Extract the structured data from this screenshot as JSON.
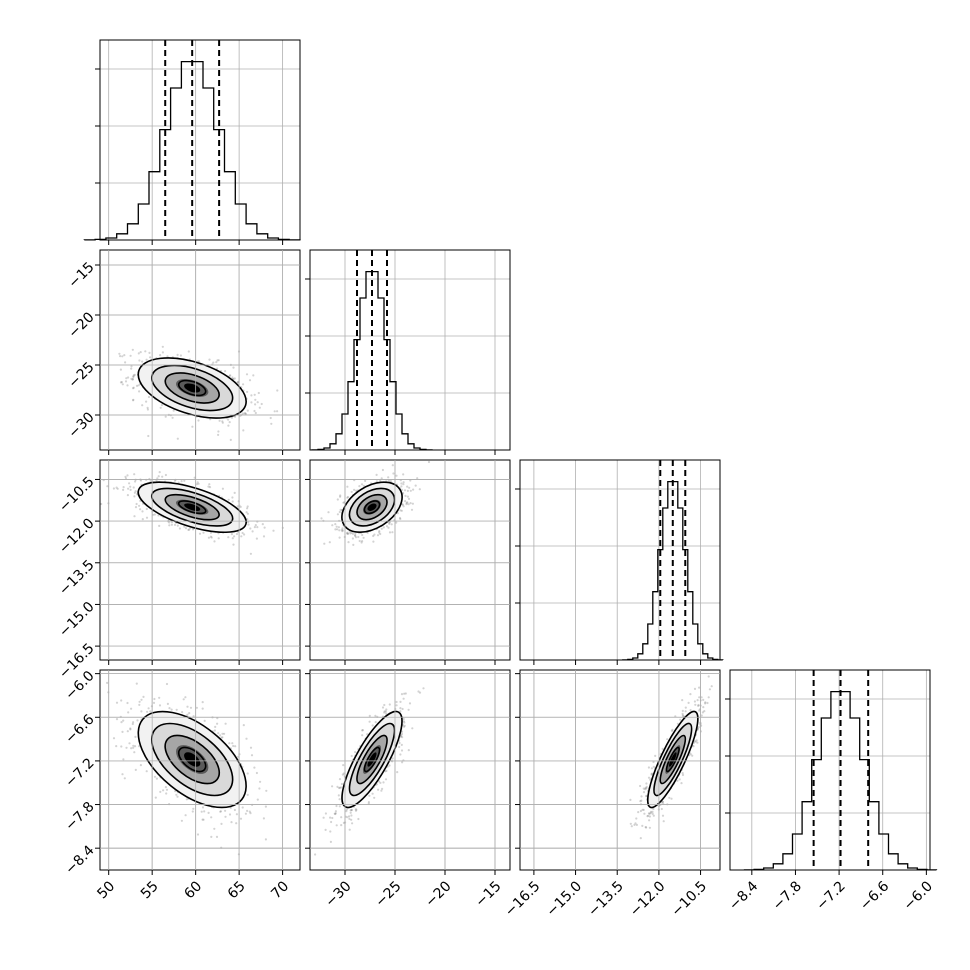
{
  "chart_data": {
    "type": "corner",
    "colors": {
      "line": "#000000",
      "grid": "#b0b0b0",
      "scatter": "#808080",
      "frame": "#000000"
    },
    "grid": true,
    "parameters": [
      {
        "mean": 59.6,
        "sd": 3.1,
        "quantiles": [
          56.5,
          59.6,
          62.7
        ],
        "range": [
          49,
          72
        ],
        "ticks": [
          50,
          55,
          60,
          65,
          70
        ],
        "tick_labels": [
          "50",
          "55",
          "60",
          "65",
          "70"
        ]
      },
      {
        "mean": -27.3,
        "sd": 1.5,
        "quantiles": [
          -28.8,
          -27.3,
          -25.8
        ],
        "range": [
          -33.5,
          -13.5
        ],
        "ticks": [
          -30,
          -25,
          -20,
          -15
        ],
        "tick_labels": [
          "−30",
          "−25",
          "−20",
          "−15"
        ]
      },
      {
        "mean": -11.5,
        "sd": 0.45,
        "quantiles": [
          -11.95,
          -11.5,
          -11.05
        ],
        "range": [
          -17.0,
          -9.8
        ],
        "ticks": [
          -16.5,
          -15.0,
          -13.5,
          -12.0,
          -10.5
        ],
        "tick_labels": [
          "−16.5",
          "−15.0",
          "−13.5",
          "−12.0",
          "−10.5"
        ]
      },
      {
        "mean": -7.18,
        "sd": 0.33,
        "quantiles": [
          -7.55,
          -7.18,
          -6.8
        ],
        "range": [
          -8.7,
          -5.95
        ],
        "ticks": [
          -8.4,
          -7.8,
          -7.2,
          -6.6,
          -6.0
        ],
        "tick_labels": [
          "−8.4",
          "−7.8",
          "−7.2",
          "−6.6",
          "−6.0"
        ]
      }
    ],
    "correlations": [
      {
        "pair": [
          0,
          1
        ],
        "rho": -0.45
      },
      {
        "pair": [
          0,
          2
        ],
        "rho": -0.6
      },
      {
        "pair": [
          1,
          2
        ],
        "rho": 0.4
      },
      {
        "pair": [
          0,
          3
        ],
        "rho": -0.55
      },
      {
        "pair": [
          1,
          3
        ],
        "rho": 0.8
      },
      {
        "pair": [
          2,
          3
        ],
        "rho": 0.85
      }
    ],
    "histogram_bins": 20,
    "contour_levels_sigma": [
      0.5,
      1.0,
      1.5,
      2.0
    ]
  }
}
